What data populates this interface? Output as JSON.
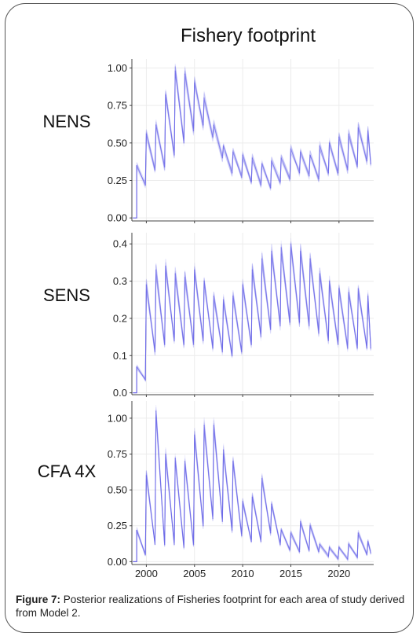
{
  "figure_title": "Fishery footprint",
  "caption": {
    "label": "Figure 7:",
    "text": " Posterior realizations of Fisheries footprint for each area of study derived from Model 2."
  },
  "colors": {
    "series": "#5b55e6",
    "grid": "#ececec",
    "axis": "#444444"
  },
  "chart_data": [
    {
      "type": "line",
      "panel_label": "NENS",
      "xlim": [
        1998.5,
        2023.6
      ],
      "ylim": [
        -0.02,
        1.06
      ],
      "yticks": [
        0.0,
        0.25,
        0.5,
        0.75,
        1.0
      ],
      "ytick_labels": [
        "0.00",
        "0.25",
        "0.50",
        "0.75",
        "1.00"
      ],
      "xticks": [
        2000,
        2005,
        2010,
        2015,
        2020
      ],
      "show_xtick_labels": false,
      "grid": true,
      "series": [
        {
          "x": [
            1999.0,
            1999.9,
            2000.0,
            2000.9,
            2001.0,
            2001.9,
            2002.0,
            2002.9,
            2003.0,
            2003.9,
            2004.0,
            2004.9,
            2005.0,
            2005.9,
            2006.0,
            2006.9,
            2007.0,
            2007.9,
            2008.0,
            2008.9,
            2009.0,
            2009.9,
            2010.0,
            2010.9,
            2011.0,
            2011.9,
            2012.0,
            2012.9,
            2013.0,
            2013.9,
            2014.0,
            2014.9,
            2015.0,
            2015.9,
            2016.0,
            2016.9,
            2017.0,
            2017.9,
            2018.0,
            2018.9,
            2019.0,
            2019.9,
            2020.0,
            2020.9,
            2021.0,
            2021.9,
            2022.0,
            2022.9,
            2023.0,
            2023.3
          ],
          "y": [
            0.35,
            0.22,
            0.56,
            0.32,
            0.62,
            0.34,
            0.82,
            0.42,
            0.98,
            0.5,
            0.96,
            0.58,
            0.9,
            0.62,
            0.8,
            0.54,
            0.62,
            0.4,
            0.48,
            0.3,
            0.44,
            0.27,
            0.42,
            0.24,
            0.4,
            0.22,
            0.36,
            0.2,
            0.38,
            0.24,
            0.4,
            0.26,
            0.46,
            0.3,
            0.44,
            0.28,
            0.42,
            0.26,
            0.48,
            0.3,
            0.5,
            0.3,
            0.54,
            0.32,
            0.56,
            0.34,
            0.6,
            0.38,
            0.58,
            0.36
          ],
          "initial": [
            [
              1998.6,
              0.0
            ],
            [
              1999.0,
              0.0
            ]
          ]
        }
      ]
    },
    {
      "type": "line",
      "panel_label": "SENS",
      "xlim": [
        1998.5,
        2023.6
      ],
      "ylim": [
        -0.005,
        0.43
      ],
      "yticks": [
        0.0,
        0.1,
        0.2,
        0.3,
        0.4
      ],
      "ytick_labels": [
        "0.0",
        "0.1",
        "0.2",
        "0.3",
        "0.4"
      ],
      "xticks": [
        2000,
        2005,
        2010,
        2015,
        2020
      ],
      "show_xtick_labels": false,
      "grid": true,
      "series": [
        {
          "x": [
            1999.0,
            1999.9,
            2000.0,
            2000.9,
            2001.0,
            2001.9,
            2002.0,
            2002.9,
            2003.0,
            2003.9,
            2004.0,
            2004.9,
            2005.0,
            2005.9,
            2006.0,
            2006.9,
            2007.0,
            2007.9,
            2008.0,
            2008.9,
            2009.0,
            2009.9,
            2010.0,
            2010.9,
            2011.0,
            2011.9,
            2012.0,
            2012.9,
            2013.0,
            2013.9,
            2014.0,
            2014.9,
            2015.0,
            2015.9,
            2016.0,
            2016.9,
            2017.0,
            2017.9,
            2018.0,
            2018.9,
            2019.0,
            2019.9,
            2020.0,
            2020.9,
            2021.0,
            2021.9,
            2022.0,
            2022.9,
            2023.0,
            2023.3
          ],
          "y": [
            0.07,
            0.035,
            0.29,
            0.11,
            0.33,
            0.13,
            0.34,
            0.14,
            0.32,
            0.13,
            0.31,
            0.13,
            0.33,
            0.14,
            0.3,
            0.12,
            0.26,
            0.11,
            0.25,
            0.1,
            0.26,
            0.11,
            0.29,
            0.13,
            0.33,
            0.15,
            0.36,
            0.17,
            0.38,
            0.18,
            0.39,
            0.19,
            0.4,
            0.19,
            0.38,
            0.18,
            0.36,
            0.16,
            0.32,
            0.14,
            0.3,
            0.13,
            0.28,
            0.12,
            0.27,
            0.12,
            0.28,
            0.12,
            0.26,
            0.12
          ],
          "initial": [
            [
              1998.6,
              0.0
            ],
            [
              1999.0,
              0.0
            ]
          ]
        }
      ]
    },
    {
      "type": "line",
      "panel_label": "CFA 4X",
      "xlim": [
        1998.5,
        2023.6
      ],
      "ylim": [
        -0.02,
        1.12
      ],
      "yticks": [
        0.0,
        0.25,
        0.5,
        0.75,
        1.0
      ],
      "ytick_labels": [
        "0.00",
        "0.25",
        "0.50",
        "0.75",
        "1.00"
      ],
      "xticks": [
        2000,
        2005,
        2010,
        2015,
        2020
      ],
      "xtick_labels": [
        "2000",
        "2005",
        "2010",
        "2015",
        "2020"
      ],
      "show_xtick_labels": true,
      "grid": true,
      "series": [
        {
          "x": [
            1999.0,
            1999.9,
            2000.0,
            2000.9,
            2001.0,
            2001.9,
            2002.0,
            2002.9,
            2003.0,
            2003.9,
            2004.0,
            2004.9,
            2005.0,
            2005.9,
            2006.0,
            2006.9,
            2007.0,
            2007.9,
            2008.0,
            2008.9,
            2009.0,
            2009.9,
            2010.0,
            2010.9,
            2011.0,
            2011.9,
            2012.0,
            2012.9,
            2013.0,
            2013.9,
            2014.0,
            2014.9,
            2015.0,
            2015.9,
            2016.0,
            2016.9,
            2017.0,
            2017.9,
            2018.0,
            2018.9,
            2019.0,
            2019.9,
            2020.0,
            2020.9,
            2021.0,
            2021.9,
            2022.0,
            2022.9,
            2023.0,
            2023.3
          ],
          "y": [
            0.22,
            0.05,
            0.6,
            0.12,
            1.05,
            0.12,
            0.75,
            0.12,
            0.72,
            0.1,
            0.7,
            0.12,
            0.88,
            0.25,
            0.95,
            0.3,
            0.95,
            0.28,
            0.78,
            0.22,
            0.7,
            0.18,
            0.42,
            0.14,
            0.45,
            0.14,
            0.58,
            0.2,
            0.4,
            0.12,
            0.22,
            0.08,
            0.2,
            0.07,
            0.28,
            0.08,
            0.25,
            0.07,
            0.12,
            0.04,
            0.1,
            0.02,
            0.1,
            0.02,
            0.12,
            0.03,
            0.2,
            0.05,
            0.14,
            0.06
          ],
          "initial": [
            [
              1998.6,
              0.0
            ],
            [
              1999.0,
              0.0
            ]
          ]
        }
      ]
    }
  ]
}
